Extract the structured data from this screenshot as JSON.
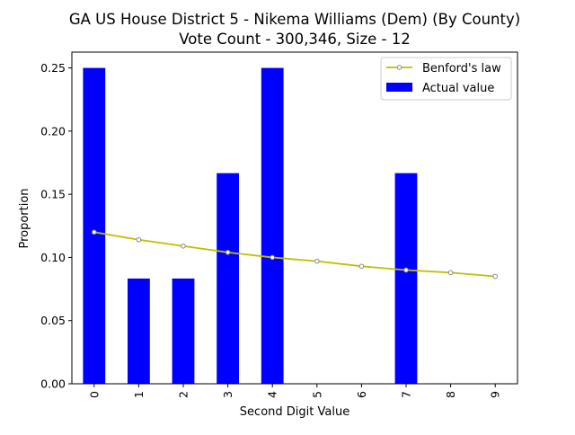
{
  "chart_data": {
    "type": "bar",
    "title": "GA US House District 5 - Nikema Williams (Dem) (By County)",
    "subtitle": "Vote Count - 300,346, Size - 12",
    "xlabel": "Second Digit Value",
    "ylabel": "Proportion",
    "categories": [
      "0",
      "1",
      "2",
      "3",
      "4",
      "5",
      "6",
      "7",
      "8",
      "9"
    ],
    "ylim": [
      0,
      0.2625
    ],
    "yticks": [
      0.0,
      0.05,
      0.1,
      0.15,
      0.2,
      0.25
    ],
    "ytick_labels": [
      "0.00",
      "0.05",
      "0.10",
      "0.15",
      "0.20",
      "0.25"
    ],
    "x_tick_rotation": "vertical",
    "grid": false,
    "legend_position": "top-right",
    "series": [
      {
        "name": "Actual value",
        "kind": "bar",
        "color": "#0000ff",
        "values": [
          0.25,
          0.0833,
          0.0833,
          0.1667,
          0.25,
          0.0,
          0.0,
          0.1667,
          0.0,
          0.0
        ]
      },
      {
        "name": "Benford's law",
        "kind": "line",
        "color": "#bfbf00",
        "marker_edge_color": "#8a8a8a",
        "marker_face_color": "#ffffff",
        "values": [
          0.12,
          0.114,
          0.109,
          0.104,
          0.1,
          0.097,
          0.093,
          0.09,
          0.088,
          0.085
        ]
      }
    ]
  }
}
